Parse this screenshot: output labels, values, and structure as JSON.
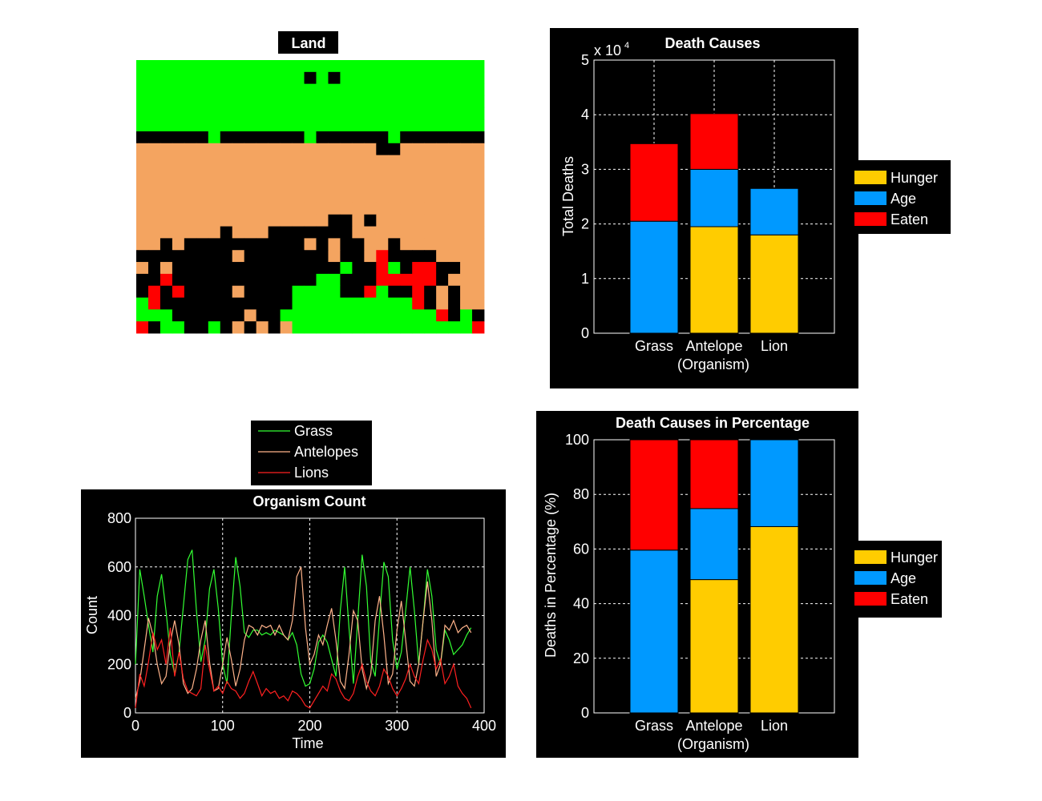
{
  "colors": {
    "grass": "#00ff00",
    "sand": "#f4a460",
    "empty": "#000000",
    "lion": "#ff0000",
    "hunger": "#ffcc00",
    "age": "#0099ff",
    "eaten": "#ff0000",
    "line_grass": "#33ff33",
    "line_antelopes": "#ffb38a",
    "line_lions": "#ff2020"
  },
  "land": {
    "title": "Land",
    "cols": 29,
    "rows": 23,
    "legend": {
      "G": "grass",
      "S": "sand",
      "K": "empty",
      "R": "lion"
    },
    "grid": [
      "GGGGGGGGGGGGGGGGGGGGGGGGGGGGG",
      "GGGGGGGGGGGGGGKGKGGGGGGGGGGGG",
      "GGGGGGGGGGGGGGGGGGGGGGGGGGGGG",
      "GGGGGGGGGGGGGGGGGGGGGGGGGGGGG",
      "GGGGGGGGGGGGGGGGGGGGGGGGGGGGG",
      "GGGGGGGGGGGGGGGGGGGGGGGGGGGGG",
      "KKKKKKGKKKKKKKGKKKKKKGKKKKKKK",
      "SSSSSSSSSSSSSSSSSSSSKKSSSSSSS",
      "SSSSSSSSSSSSSSSSSSSSSSSSSSSSS",
      "SSSSSSSSSSSSSSSSSSSSSSSSSSSSS",
      "SSSSSSSSSSSSSSSSSSSSSSSSSSSSS",
      "SSSSSSSSSSSSSSSSSSSSSSSSSSSSS",
      "SSSSSSSSSSSSSSSSSSSSSSSSSSSSS",
      "SSSSSSSSSSSSSSSSKKSKSSSSSSSSS",
      "SSSSSSSKSSSKKKKKKKSSSSSSSSSSS",
      "SSKSKKKKKKKKKKSKSKKSSKSSSSSSS",
      "KKKKKKKKSKKKKKKKSKKSRKKKKSSSS",
      "SKSKKKKKKKKKKKKKKGKKRGKRRKKSS",
      "KKRKKKKKKKKKKKKGGKKKRRRRRKSSS",
      "KRKRKKKKSKKKKGGGGKKRGKKRKSKSS",
      "GRKKKKKKKKKKKGGGGGGGGGGRKSKSS",
      "GGGKKKKKKSKKGGGGGGGGGGGGGRKGK",
      "RKGGKKGKSKSKSGGGGGGGGGGGGGGGR"
    ]
  },
  "death": {
    "title": "Death Causes",
    "ylabel": "Total Deaths",
    "xlabel": "(Organism)",
    "exponent_base": "x 10",
    "exponent_power": "4",
    "legend": [
      "Hunger",
      "Age",
      "Eaten"
    ]
  },
  "pct": {
    "title": "Death Causes in Percentage",
    "ylabel": "Deaths in Percentage (%)",
    "xlabel": "(Organism)",
    "legend": [
      "Hunger",
      "Age",
      "Eaten"
    ]
  },
  "count": {
    "title": "Organism Count",
    "xlabel": "Time",
    "ylabel": "Count",
    "legend": [
      "Grass",
      "Antelopes",
      "Lions"
    ]
  },
  "chart_data": [
    {
      "type": "heatmap",
      "title": "Land",
      "note": "see land.grid for cell categories"
    },
    {
      "type": "bar",
      "stacked": true,
      "title": "Death Causes",
      "xlabel": "(Organism)",
      "ylabel": "Total Deaths",
      "y_multiplier": "x 10^4",
      "categories": [
        "Grass",
        "Antelope",
        "Lion"
      ],
      "series": [
        {
          "name": "Hunger",
          "values": [
            0,
            1.95,
            1.8
          ]
        },
        {
          "name": "Age",
          "values": [
            2.05,
            1.05,
            0.85
          ]
        },
        {
          "name": "Eaten",
          "values": [
            1.42,
            1.02,
            0
          ]
        }
      ],
      "ylim": [
        0,
        5
      ],
      "yticks": [
        0,
        1,
        2,
        3,
        4,
        5
      ],
      "grid": true,
      "legend_position": "right"
    },
    {
      "type": "bar",
      "stacked": true,
      "title": "Death Causes in Percentage",
      "xlabel": "(Organism)",
      "ylabel": "Deaths in Percentage (%)",
      "categories": [
        "Grass",
        "Antelope",
        "Lion"
      ],
      "series": [
        {
          "name": "Hunger",
          "values": [
            0,
            48.8,
            68.2
          ]
        },
        {
          "name": "Age",
          "values": [
            59.6,
            26.0,
            31.8
          ]
        },
        {
          "name": "Eaten",
          "values": [
            40.4,
            25.2,
            0
          ]
        }
      ],
      "ylim": [
        0,
        100
      ],
      "yticks": [
        0,
        20,
        40,
        60,
        80,
        100
      ],
      "grid": true,
      "legend_position": "right"
    },
    {
      "type": "line",
      "title": "Organism Count",
      "xlabel": "Time",
      "ylabel": "Count",
      "xlim": [
        0,
        400
      ],
      "ylim": [
        0,
        800
      ],
      "xticks": [
        0,
        100,
        200,
        300,
        400
      ],
      "yticks": [
        0,
        200,
        400,
        600,
        800
      ],
      "grid": true,
      "legend_position": "top-outside",
      "series": [
        {
          "name": "Grass",
          "x": [
            0,
            5,
            10,
            15,
            20,
            25,
            30,
            35,
            40,
            45,
            50,
            55,
            60,
            65,
            70,
            75,
            80,
            85,
            90,
            95,
            100,
            105,
            110,
            115,
            120,
            125,
            130,
            135,
            140,
            145,
            150,
            155,
            160,
            165,
            170,
            175,
            180,
            185,
            190,
            195,
            200,
            205,
            210,
            215,
            220,
            225,
            230,
            235,
            240,
            245,
            250,
            255,
            260,
            265,
            270,
            275,
            280,
            285,
            290,
            295,
            300,
            305,
            310,
            315,
            320,
            325,
            330,
            335,
            340,
            345,
            350,
            355,
            360,
            365,
            370,
            375,
            380,
            385
          ],
          "y": [
            200,
            590,
            480,
            360,
            250,
            480,
            570,
            420,
            240,
            160,
            250,
            440,
            630,
            670,
            420,
            210,
            300,
            510,
            590,
            430,
            200,
            120,
            400,
            640,
            520,
            330,
            310,
            340,
            340,
            320,
            330,
            320,
            340,
            330,
            320,
            300,
            330,
            280,
            160,
            110,
            120,
            180,
            290,
            320,
            290,
            220,
            150,
            420,
            600,
            350,
            120,
            380,
            650,
            520,
            210,
            150,
            390,
            620,
            560,
            300,
            180,
            250,
            420,
            600,
            420,
            200,
            380,
            590,
            480,
            260,
            200,
            340,
            300,
            240,
            260,
            280,
            320,
            350
          ]
        },
        {
          "name": "Antelopes",
          "x": [
            0,
            5,
            10,
            15,
            20,
            25,
            30,
            35,
            40,
            45,
            50,
            55,
            60,
            65,
            70,
            75,
            80,
            85,
            90,
            95,
            100,
            105,
            110,
            115,
            120,
            125,
            130,
            135,
            140,
            145,
            150,
            155,
            160,
            165,
            170,
            175,
            180,
            185,
            190,
            195,
            200,
            205,
            210,
            215,
            220,
            225,
            230,
            235,
            240,
            245,
            250,
            255,
            260,
            265,
            270,
            275,
            280,
            285,
            290,
            295,
            300,
            305,
            310,
            315,
            320,
            325,
            330,
            335,
            340,
            345,
            350,
            355,
            360,
            365,
            370,
            375,
            380,
            385
          ],
          "y": [
            60,
            130,
            260,
            390,
            320,
            200,
            120,
            150,
            290,
            380,
            280,
            120,
            80,
            100,
            180,
            300,
            380,
            210,
            90,
            100,
            200,
            310,
            220,
            110,
            180,
            300,
            360,
            350,
            320,
            360,
            350,
            360,
            320,
            360,
            320,
            300,
            380,
            560,
            600,
            350,
            200,
            240,
            320,
            280,
            360,
            430,
            300,
            130,
            100,
            240,
            420,
            380,
            180,
            100,
            160,
            380,
            480,
            320,
            120,
            160,
            340,
            460,
            300,
            130,
            110,
            200,
            380,
            540,
            380,
            150,
            200,
            360,
            340,
            380,
            330,
            350,
            360,
            330
          ]
        },
        {
          "name": "Lions",
          "x": [
            0,
            5,
            10,
            15,
            20,
            25,
            30,
            35,
            40,
            45,
            50,
            55,
            60,
            65,
            70,
            75,
            80,
            85,
            90,
            95,
            100,
            105,
            110,
            115,
            120,
            125,
            130,
            135,
            140,
            145,
            150,
            155,
            160,
            165,
            170,
            175,
            180,
            185,
            190,
            195,
            200,
            205,
            210,
            215,
            220,
            225,
            230,
            235,
            240,
            245,
            250,
            255,
            260,
            265,
            270,
            275,
            280,
            285,
            290,
            295,
            300,
            305,
            310,
            315,
            320,
            325,
            330,
            335,
            340,
            345,
            350,
            355,
            360,
            365,
            370,
            375,
            380,
            385
          ],
          "y": [
            20,
            160,
            110,
            210,
            330,
            260,
            300,
            200,
            350,
            150,
            250,
            140,
            90,
            80,
            70,
            100,
            280,
            180,
            90,
            110,
            80,
            130,
            100,
            90,
            60,
            80,
            130,
            170,
            120,
            70,
            100,
            80,
            90,
            60,
            70,
            50,
            90,
            80,
            60,
            30,
            20,
            50,
            80,
            110,
            90,
            160,
            140,
            90,
            60,
            50,
            80,
            150,
            200,
            130,
            90,
            70,
            110,
            180,
            150,
            100,
            70,
            100,
            140,
            200,
            150,
            120,
            220,
            300,
            260,
            180,
            220,
            120,
            150,
            200,
            110,
            80,
            60,
            20
          ]
        }
      ]
    }
  ]
}
